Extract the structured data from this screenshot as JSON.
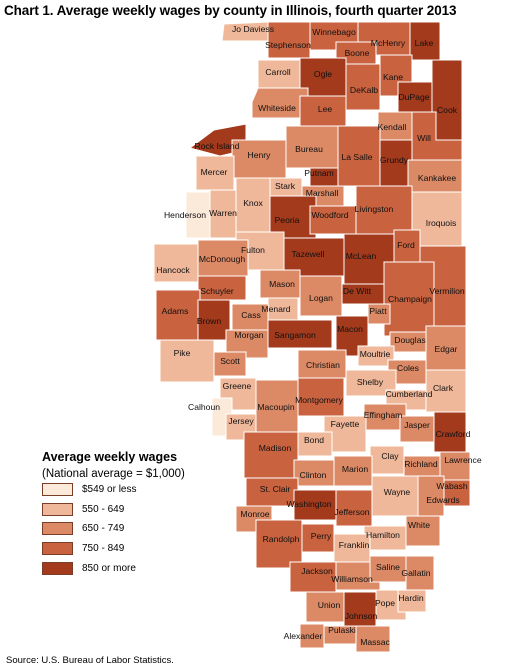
{
  "title": "Chart 1. Average weekly wages by county in Illinois, fourth quarter 2013",
  "legend": {
    "title": "Average weekly wages",
    "subtitle": "(National average = $1,000)",
    "items": [
      {
        "label": "$549 or less",
        "color": "#fbe9d9"
      },
      {
        "label": "550 - 649",
        "color": "#f0b89a"
      },
      {
        "label": "650 - 749",
        "color": "#dc8a66"
      },
      {
        "label": "750 - 849",
        "color": "#c9623f"
      },
      {
        "label": "850 or more",
        "color": "#a33a1c"
      }
    ]
  },
  "source": "Source: U.S. Bureau of Labor Statistics.",
  "counties": [
    {
      "name": "Jo Daviess",
      "tier": 1
    },
    {
      "name": "Stephenson",
      "tier": 3
    },
    {
      "name": "Winnebago",
      "tier": 3
    },
    {
      "name": "Boone",
      "tier": 3
    },
    {
      "name": "McHenry",
      "tier": 3
    },
    {
      "name": "Lake",
      "tier": 4
    },
    {
      "name": "Carroll",
      "tier": 1
    },
    {
      "name": "Ogle",
      "tier": 4
    },
    {
      "name": "DeKalb",
      "tier": 3
    },
    {
      "name": "Kane",
      "tier": 3
    },
    {
      "name": "DuPage",
      "tier": 4
    },
    {
      "name": "Cook",
      "tier": 4
    },
    {
      "name": "Whiteside",
      "tier": 2
    },
    {
      "name": "Lee",
      "tier": 3
    },
    {
      "name": "Kendall",
      "tier": 2
    },
    {
      "name": "Will",
      "tier": 3
    },
    {
      "name": "Rock Island",
      "tier": 4
    },
    {
      "name": "Henry",
      "tier": 2
    },
    {
      "name": "Bureau",
      "tier": 2
    },
    {
      "name": "La Salle",
      "tier": 3
    },
    {
      "name": "Grundy",
      "tier": 4
    },
    {
      "name": "Kankakee",
      "tier": 2
    },
    {
      "name": "Mercer",
      "tier": 1
    },
    {
      "name": "Putnam",
      "tier": 4
    },
    {
      "name": "Stark",
      "tier": 1
    },
    {
      "name": "Marshall",
      "tier": 2
    },
    {
      "name": "Henderson",
      "tier": 0
    },
    {
      "name": "Knox",
      "tier": 1
    },
    {
      "name": "Warren",
      "tier": 1
    },
    {
      "name": "Peoria",
      "tier": 4
    },
    {
      "name": "Woodford",
      "tier": 3
    },
    {
      "name": "Livingston",
      "tier": 3
    },
    {
      "name": "Iroquois",
      "tier": 1
    },
    {
      "name": "Ford",
      "tier": 3
    },
    {
      "name": "Tazewell",
      "tier": 4
    },
    {
      "name": "McLean",
      "tier": 4
    },
    {
      "name": "Fulton",
      "tier": 1
    },
    {
      "name": "Hancock",
      "tier": 1
    },
    {
      "name": "McDonough",
      "tier": 2
    },
    {
      "name": "Vermilion",
      "tier": 3
    },
    {
      "name": "Schuyler",
      "tier": 3
    },
    {
      "name": "Mason",
      "tier": 2
    },
    {
      "name": "Logan",
      "tier": 2
    },
    {
      "name": "De Witt",
      "tier": 4
    },
    {
      "name": "Champaign",
      "tier": 3
    },
    {
      "name": "Adams",
      "tier": 3
    },
    {
      "name": "Brown",
      "tier": 4
    },
    {
      "name": "Cass",
      "tier": 2
    },
    {
      "name": "Menard",
      "tier": 1
    },
    {
      "name": "Piatt",
      "tier": 2
    },
    {
      "name": "Macon",
      "tier": 4
    },
    {
      "name": "Douglas",
      "tier": 2
    },
    {
      "name": "Edgar",
      "tier": 2
    },
    {
      "name": "Morgan",
      "tier": 2
    },
    {
      "name": "Sangamon",
      "tier": 4
    },
    {
      "name": "Moultrie",
      "tier": 1
    },
    {
      "name": "Pike",
      "tier": 1
    },
    {
      "name": "Scott",
      "tier": 2
    },
    {
      "name": "Christian",
      "tier": 2
    },
    {
      "name": "Coles",
      "tier": 2
    },
    {
      "name": "Shelby",
      "tier": 1
    },
    {
      "name": "Clark",
      "tier": 1
    },
    {
      "name": "Greene",
      "tier": 1
    },
    {
      "name": "Macoupin",
      "tier": 2
    },
    {
      "name": "Montgomery",
      "tier": 3
    },
    {
      "name": "Cumberland",
      "tier": 1
    },
    {
      "name": "Calhoun",
      "tier": 0
    },
    {
      "name": "Jersey",
      "tier": 1
    },
    {
      "name": "Effingham",
      "tier": 2
    },
    {
      "name": "Jasper",
      "tier": 2
    },
    {
      "name": "Crawford",
      "tier": 4
    },
    {
      "name": "Fayette",
      "tier": 1
    },
    {
      "name": "Bond",
      "tier": 1
    },
    {
      "name": "Madison",
      "tier": 3
    },
    {
      "name": "Clay",
      "tier": 1
    },
    {
      "name": "Richland",
      "tier": 2
    },
    {
      "name": "Lawrence",
      "tier": 2
    },
    {
      "name": "Clinton",
      "tier": 2
    },
    {
      "name": "Marion",
      "tier": 2
    },
    {
      "name": "St. Clair",
      "tier": 3
    },
    {
      "name": "Wabash",
      "tier": 3
    },
    {
      "name": "Wayne",
      "tier": 1
    },
    {
      "name": "Edwards",
      "tier": 2
    },
    {
      "name": "Washington",
      "tier": 4
    },
    {
      "name": "Monroe",
      "tier": 2
    },
    {
      "name": "Jefferson",
      "tier": 3
    },
    {
      "name": "White",
      "tier": 2
    },
    {
      "name": "Randolph",
      "tier": 3
    },
    {
      "name": "Perry",
      "tier": 3
    },
    {
      "name": "Hamilton",
      "tier": 1
    },
    {
      "name": "Franklin",
      "tier": 1
    },
    {
      "name": "Jackson",
      "tier": 3
    },
    {
      "name": "Williamson",
      "tier": 2
    },
    {
      "name": "Saline",
      "tier": 2
    },
    {
      "name": "Gallatin",
      "tier": 2
    },
    {
      "name": "Union",
      "tier": 2
    },
    {
      "name": "Johnson",
      "tier": 4
    },
    {
      "name": "Pope",
      "tier": 1
    },
    {
      "name": "Hardin",
      "tier": 1
    },
    {
      "name": "Alexander",
      "tier": 2
    },
    {
      "name": "Pulaski",
      "tier": 2
    },
    {
      "name": "Massac",
      "tier": 2
    }
  ]
}
